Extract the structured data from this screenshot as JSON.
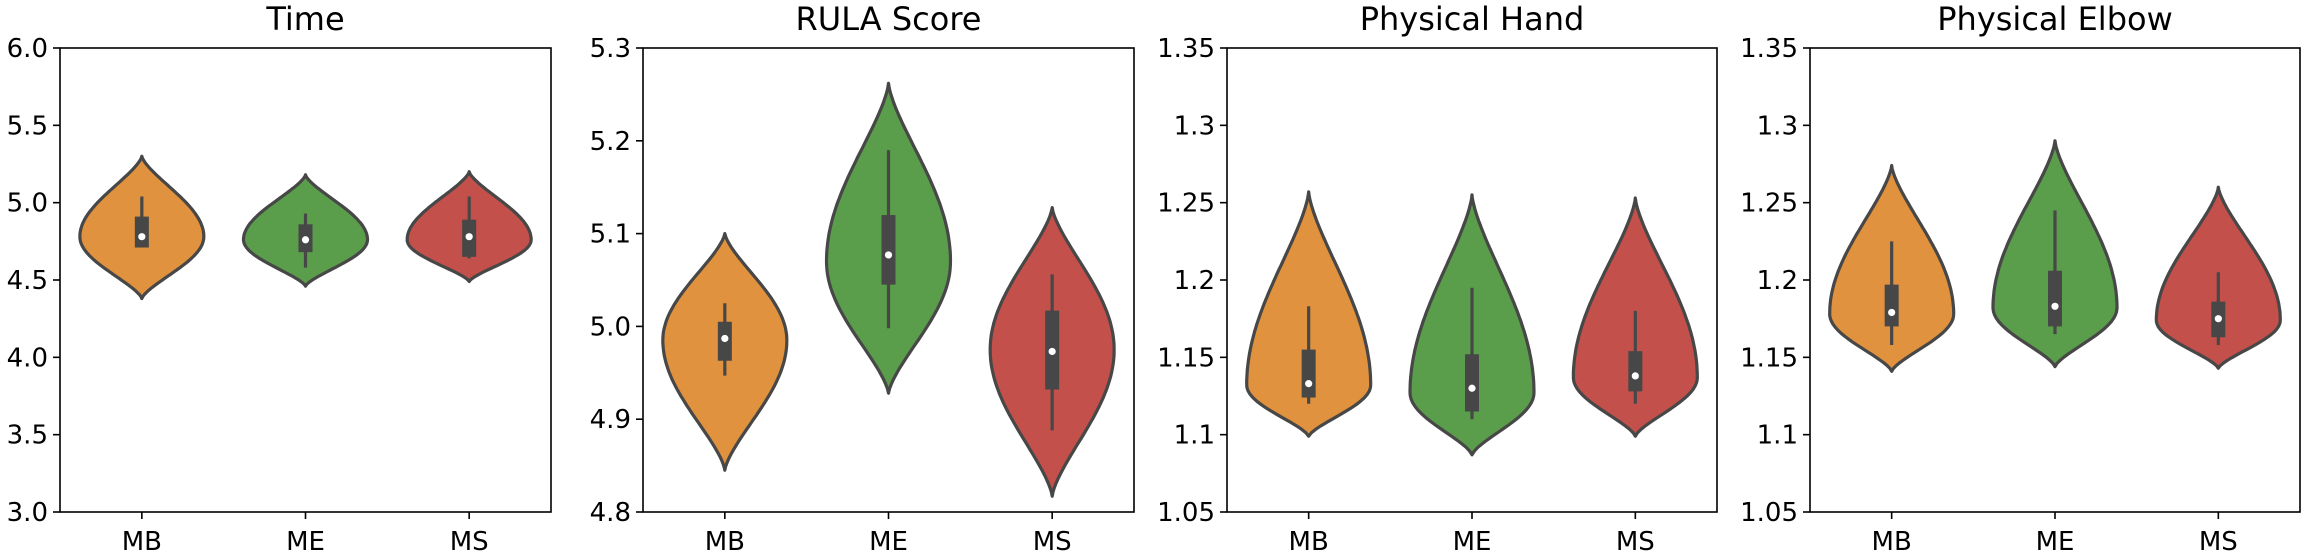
{
  "chart_data": [
    {
      "type": "violin",
      "title": "Time",
      "xlabel": "",
      "ylabel": "",
      "categories": [
        "MB",
        "ME",
        "MS"
      ],
      "ylim": [
        3.0,
        6.0
      ],
      "yticks": [
        3.0,
        3.5,
        4.0,
        4.5,
        5.0,
        5.5,
        6.0
      ],
      "ytick_labels": [
        "3.0",
        "3.5",
        "4.0",
        "4.5",
        "5.0",
        "5.5",
        "6.0"
      ],
      "violins": [
        {
          "category": "MB",
          "min": 4.38,
          "max": 5.3,
          "mode": 4.78,
          "q1": 4.71,
          "median": 4.78,
          "q3": 4.91,
          "whisker_low": 4.71,
          "whisker_high": 5.04
        },
        {
          "category": "ME",
          "min": 4.46,
          "max": 5.18,
          "mode": 4.76,
          "q1": 4.68,
          "median": 4.76,
          "q3": 4.86,
          "whisker_low": 4.58,
          "whisker_high": 4.93
        },
        {
          "category": "MS",
          "min": 4.49,
          "max": 5.2,
          "mode": 4.76,
          "q1": 4.65,
          "median": 4.78,
          "q3": 4.89,
          "whisker_low": 4.64,
          "whisker_high": 5.04
        }
      ]
    },
    {
      "type": "violin",
      "title": "RULA Score",
      "xlabel": "",
      "ylabel": "",
      "categories": [
        "MB",
        "ME",
        "MS"
      ],
      "ylim": [
        4.8,
        5.3
      ],
      "yticks": [
        4.8,
        4.9,
        5.0,
        5.1,
        5.2,
        5.3
      ],
      "ytick_labels": [
        "4.8",
        "4.9",
        "5.0",
        "5.1",
        "5.2",
        "5.3"
      ],
      "violins": [
        {
          "category": "MB",
          "min": 4.845,
          "max": 5.1,
          "mode": 4.985,
          "q1": 4.963,
          "median": 4.987,
          "q3": 5.005,
          "whisker_low": 4.947,
          "whisker_high": 5.025
        },
        {
          "category": "ME",
          "min": 4.928,
          "max": 5.262,
          "mode": 5.07,
          "q1": 5.045,
          "median": 5.077,
          "q3": 5.12,
          "whisker_low": 4.998,
          "whisker_high": 5.19
        },
        {
          "category": "MS",
          "min": 4.817,
          "max": 5.128,
          "mode": 4.975,
          "q1": 4.932,
          "median": 4.973,
          "q3": 5.017,
          "whisker_low": 4.888,
          "whisker_high": 5.056
        }
      ]
    },
    {
      "type": "violin",
      "title": "Physical Hand",
      "xlabel": "",
      "ylabel": "",
      "categories": [
        "MB",
        "ME",
        "MS"
      ],
      "ylim": [
        1.05,
        1.35
      ],
      "yticks": [
        1.05,
        1.1,
        1.15,
        1.2,
        1.25,
        1.3,
        1.35
      ],
      "ytick_labels": [
        "1.05",
        "1.1",
        "1.15",
        "1.2",
        "1.25",
        "1.3",
        "1.35"
      ],
      "violins": [
        {
          "category": "MB",
          "min": 1.099,
          "max": 1.257,
          "mode": 1.132,
          "q1": 1.124,
          "median": 1.133,
          "q3": 1.155,
          "whisker_low": 1.12,
          "whisker_high": 1.183
        },
        {
          "category": "ME",
          "min": 1.087,
          "max": 1.255,
          "mode": 1.127,
          "q1": 1.115,
          "median": 1.13,
          "q3": 1.152,
          "whisker_low": 1.11,
          "whisker_high": 1.195
        },
        {
          "category": "MS",
          "min": 1.099,
          "max": 1.253,
          "mode": 1.137,
          "q1": 1.128,
          "median": 1.138,
          "q3": 1.154,
          "whisker_low": 1.12,
          "whisker_high": 1.18
        }
      ]
    },
    {
      "type": "violin",
      "title": "Physical Elbow",
      "xlabel": "",
      "ylabel": "",
      "categories": [
        "MB",
        "ME",
        "MS"
      ],
      "ylim": [
        1.05,
        1.35
      ],
      "yticks": [
        1.05,
        1.1,
        1.15,
        1.2,
        1.25,
        1.3,
        1.35
      ],
      "ytick_labels": [
        "1.05",
        "1.1",
        "1.15",
        "1.2",
        "1.25",
        "1.3",
        "1.35"
      ],
      "violins": [
        {
          "category": "MB",
          "min": 1.141,
          "max": 1.274,
          "mode": 1.178,
          "q1": 1.17,
          "median": 1.179,
          "q3": 1.197,
          "whisker_low": 1.158,
          "whisker_high": 1.225
        },
        {
          "category": "ME",
          "min": 1.144,
          "max": 1.29,
          "mode": 1.182,
          "q1": 1.17,
          "median": 1.183,
          "q3": 1.206,
          "whisker_low": 1.165,
          "whisker_high": 1.245
        },
        {
          "category": "MS",
          "min": 1.143,
          "max": 1.26,
          "mode": 1.174,
          "q1": 1.163,
          "median": 1.175,
          "q3": 1.186,
          "whisker_low": 1.158,
          "whisker_high": 1.205
        }
      ]
    }
  ],
  "palette": {
    "MB": "#e1923f",
    "ME": "#5a9e4b",
    "MS": "#c4504b"
  }
}
